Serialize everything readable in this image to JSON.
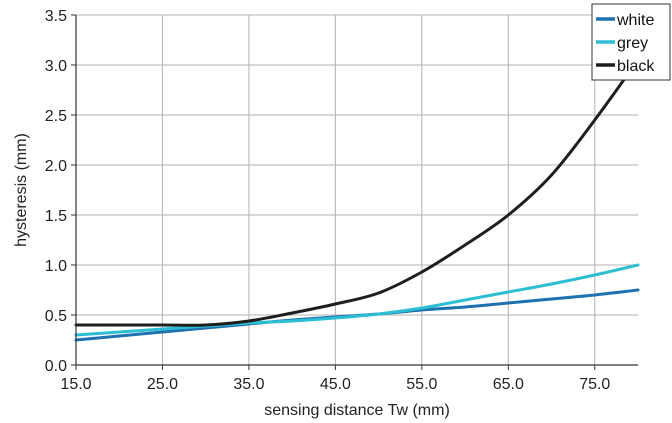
{
  "chart_data": {
    "type": "line",
    "title": "",
    "xlabel": "sensing distance Tw (mm)",
    "ylabel": "hysteresis (mm)",
    "xlim": [
      15.0,
      80.0
    ],
    "ylim": [
      0.0,
      3.5
    ],
    "xticks": [
      15.0,
      25.0,
      35.0,
      45.0,
      55.0,
      65.0,
      75.0
    ],
    "xtick_labels": [
      "15.0",
      "25.0",
      "35.0",
      "45.0",
      "55.0",
      "65.0",
      "75.0"
    ],
    "yticks": [
      0.0,
      0.5,
      1.0,
      1.5,
      2.0,
      2.5,
      3.0,
      3.5
    ],
    "ytick_labels": [
      "0.0",
      "0.5",
      "1.0",
      "1.5",
      "2.0",
      "2.5",
      "3.0",
      "3.5"
    ],
    "grid": true,
    "legend_position": "top-right",
    "series": [
      {
        "name": "white",
        "color": "#1f72b0",
        "points": [
          [
            15,
            0.25
          ],
          [
            20,
            0.29
          ],
          [
            25,
            0.33
          ],
          [
            30,
            0.37
          ],
          [
            35,
            0.41
          ],
          [
            40,
            0.45
          ],
          [
            45,
            0.48
          ],
          [
            50,
            0.51
          ],
          [
            55,
            0.55
          ],
          [
            60,
            0.58
          ],
          [
            65,
            0.62
          ],
          [
            70,
            0.66
          ],
          [
            75,
            0.7
          ],
          [
            80,
            0.75
          ]
        ]
      },
      {
        "name": "grey",
        "color": "#2ebed3",
        "points": [
          [
            15,
            0.3
          ],
          [
            20,
            0.33
          ],
          [
            25,
            0.36
          ],
          [
            30,
            0.39
          ],
          [
            35,
            0.42
          ],
          [
            40,
            0.44
          ],
          [
            45,
            0.47
          ],
          [
            50,
            0.51
          ],
          [
            55,
            0.57
          ],
          [
            60,
            0.65
          ],
          [
            65,
            0.73
          ],
          [
            70,
            0.81
          ],
          [
            75,
            0.9
          ],
          [
            80,
            1.0
          ]
        ]
      },
      {
        "name": "black",
        "color": "#1e1e1e",
        "points": [
          [
            15,
            0.4
          ],
          [
            20,
            0.4
          ],
          [
            25,
            0.4
          ],
          [
            30,
            0.4
          ],
          [
            35,
            0.44
          ],
          [
            40,
            0.52
          ],
          [
            45,
            0.61
          ],
          [
            50,
            0.72
          ],
          [
            55,
            0.93
          ],
          [
            60,
            1.2
          ],
          [
            65,
            1.5
          ],
          [
            70,
            1.9
          ],
          [
            75,
            2.45
          ],
          [
            80,
            3.05
          ]
        ]
      }
    ]
  }
}
